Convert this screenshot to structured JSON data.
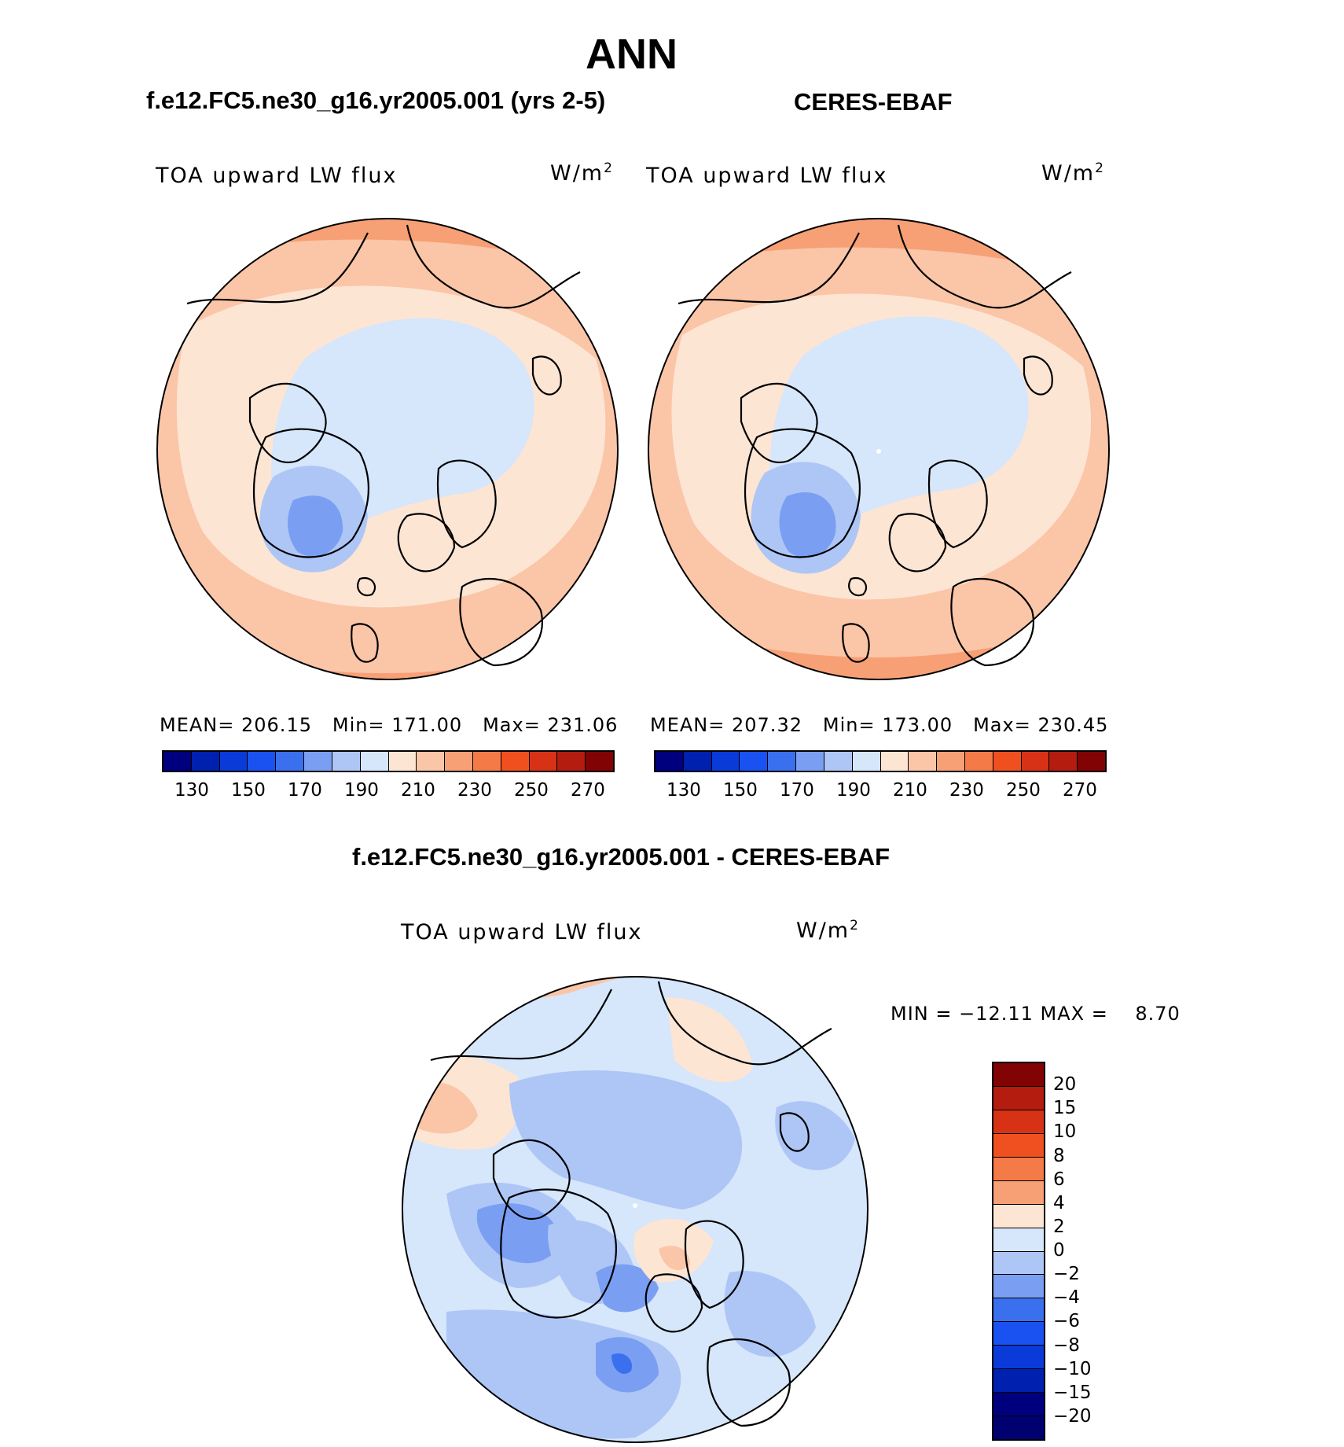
{
  "season": "ANN",
  "panels": {
    "model": {
      "header": "f.e12.FC5.ne30_g16.yr2005.001 (yrs 2-5)",
      "variable": "TOA upward LW flux",
      "units_base": "W/m",
      "units_exp": "2",
      "mean_label": "MEAN=",
      "mean": "206.15",
      "min_label": "Min=",
      "min": "171.00",
      "max_label": "Max=",
      "max": "231.06"
    },
    "obs": {
      "header": "CERES-EBAF",
      "variable": "TOA upward LW flux",
      "units_base": "W/m",
      "units_exp": "2",
      "mean_label": "MEAN=",
      "mean": "207.32",
      "min_label": "Min=",
      "min": "173.00",
      "max_label": "Max=",
      "max": "230.45"
    },
    "diff": {
      "header": "f.e12.FC5.ne30_g16.yr2005.001 - CERES-EBAF",
      "variable": "TOA upward LW flux",
      "units_base": "W/m",
      "units_exp": "2",
      "minmax_text": "MIN = −12.11 MAX =    8.70"
    }
  },
  "abs_colorbar": {
    "colors": [
      "#00007f",
      "#0020b0",
      "#0a3ad8",
      "#1a52f2",
      "#3a6fee",
      "#7a9ff2",
      "#aec6f6",
      "#d6e6fb",
      "#fde5d4",
      "#fbc5a8",
      "#f7a075",
      "#f47a48",
      "#f0501f",
      "#d83216",
      "#b31c0f",
      "#820303"
    ],
    "tick_labels": [
      "130",
      "150",
      "170",
      "190",
      "210",
      "230",
      "250",
      "270"
    ]
  },
  "diff_colorbar": {
    "colors": [
      "#820303",
      "#b31c0f",
      "#d83216",
      "#f0501f",
      "#f47a48",
      "#f7a075",
      "#fde5d4",
      "#d6e6fb",
      "#aec6f6",
      "#7a9ff2",
      "#3a6fee",
      "#1a52f2",
      "#0a3ad8",
      "#0020b0",
      "#00007f",
      "#000070"
    ],
    "tick_labels": [
      "20",
      "15",
      "10",
      "8",
      "6",
      "4",
      "2",
      "0",
      "−2",
      "−4",
      "−6",
      "−8",
      "−10",
      "−15",
      "−20"
    ]
  }
}
